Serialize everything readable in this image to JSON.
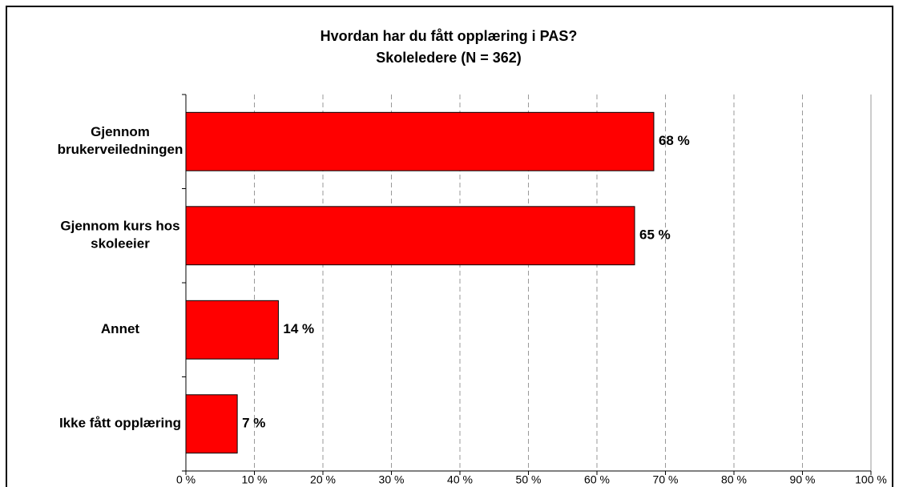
{
  "chart_data": {
    "type": "barh",
    "title": "Hvordan har du fått opplæring i PAS?",
    "subtitle": "Skoleledere (N = 362)",
    "categories": [
      "Gjennom\nbrukerveiledningen",
      "Gjennom kurs hos\nskoleeier",
      "Annet",
      "Ikke fått opplæring"
    ],
    "values": [
      68.3,
      65.5,
      13.5,
      7.5
    ],
    "value_labels": [
      "68 %",
      "65 %",
      "14 %",
      "7 %"
    ],
    "color": "#ff0000",
    "xlim": [
      0,
      100
    ],
    "xticks": [
      {
        "value": 0,
        "label": "0 %"
      },
      {
        "value": 10,
        "label": "10 %"
      },
      {
        "value": 20,
        "label": "20 %"
      },
      {
        "value": 30,
        "label": "30 %"
      },
      {
        "value": 40,
        "label": "40 %"
      },
      {
        "value": 50,
        "label": "50 %"
      },
      {
        "value": 60,
        "label": "60 %"
      },
      {
        "value": 70,
        "label": "70 %"
      },
      {
        "value": 80,
        "label": "80 %"
      },
      {
        "value": 90,
        "label": "90 %"
      },
      {
        "value": 100,
        "label": "100 %"
      }
    ],
    "grid": true
  }
}
